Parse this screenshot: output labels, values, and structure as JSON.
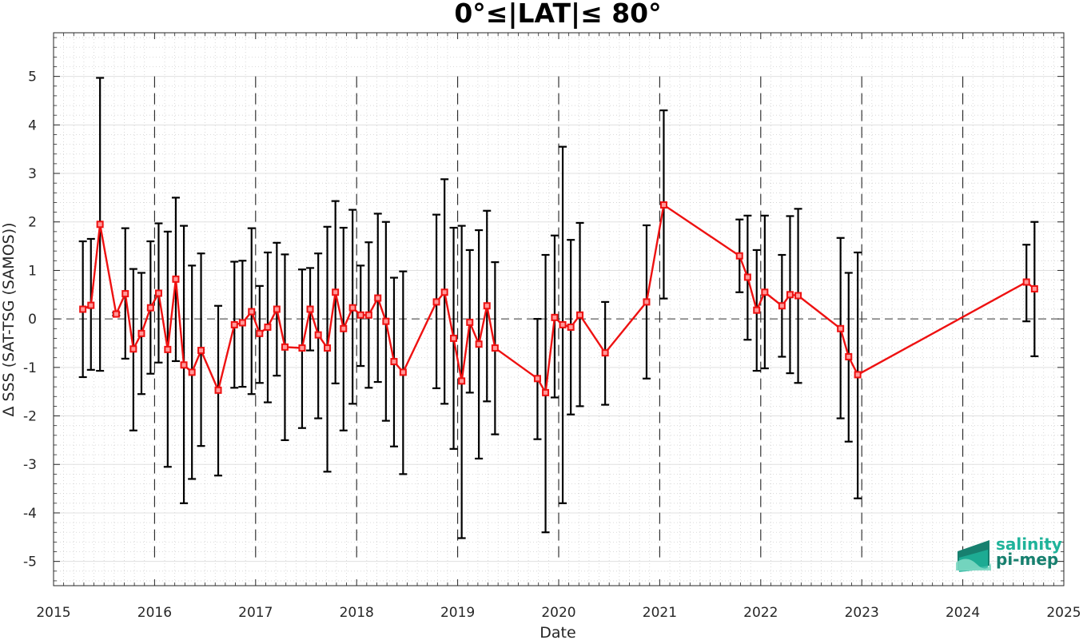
{
  "chart_data": {
    "type": "line",
    "title": "0°≤|LAT|≤ 80°",
    "xlabel": "Date",
    "ylabel": "Δ SSS (SAT-TSG (SAMOS))",
    "xlim": [
      2015,
      2025
    ],
    "ylim": [
      -5.5,
      5.9
    ],
    "x_ticks": [
      "2015",
      "2016",
      "2017",
      "2018",
      "2019",
      "2020",
      "2021",
      "2022",
      "2023",
      "2024",
      "2025"
    ],
    "y_ticks": [
      "5",
      "4",
      "3",
      "2",
      "1",
      "0",
      "-1",
      "-2",
      "-3",
      "-4",
      "-5"
    ],
    "grid": true,
    "reference_line_y": 0,
    "year_boundaries": [
      2016,
      2017,
      2018,
      2019,
      2020,
      2021,
      2022,
      2023,
      2024
    ],
    "series": [
      {
        "color": "#ee1111",
        "marker": "square",
        "x": [
          2015.29,
          2015.37,
          2015.46,
          2015.62,
          2015.71,
          2015.79,
          2015.87,
          2015.96,
          2016.04,
          2016.13,
          2016.21,
          2016.29,
          2016.37,
          2016.46,
          2016.63,
          2016.79,
          2016.87,
          2016.96,
          2017.04,
          2017.12,
          2017.21,
          2017.29,
          2017.46,
          2017.54,
          2017.62,
          2017.71,
          2017.79,
          2017.87,
          2017.96,
          2018.04,
          2018.12,
          2018.21,
          2018.29,
          2018.37,
          2018.46,
          2018.79,
          2018.87,
          2018.96,
          2019.04,
          2019.12,
          2019.21,
          2019.29,
          2019.37,
          2019.79,
          2019.87,
          2019.96,
          2020.04,
          2020.12,
          2020.21,
          2020.46,
          2020.87,
          2021.04,
          2021.79,
          2021.87,
          2021.96,
          2022.04,
          2022.21,
          2022.29,
          2022.37,
          2022.79,
          2022.87,
          2022.96,
          2024.63,
          2024.71
        ],
        "y": [
          0.2,
          0.28,
          1.95,
          0.1,
          0.52,
          -0.62,
          -0.3,
          0.23,
          0.53,
          -0.63,
          0.82,
          -0.95,
          -1.1,
          -0.65,
          -1.47,
          -0.12,
          -0.08,
          0.15,
          -0.3,
          -0.17,
          0.2,
          -0.58,
          -0.6,
          0.2,
          -0.33,
          -0.6,
          0.55,
          -0.2,
          0.23,
          0.08,
          0.08,
          0.43,
          -0.05,
          -0.88,
          -1.1,
          0.35,
          0.55,
          -0.4,
          -1.28,
          -0.07,
          -0.52,
          0.27,
          -0.6,
          -1.23,
          -1.52,
          0.03,
          -0.12,
          -0.17,
          0.08,
          -0.7,
          0.35,
          2.35,
          1.3,
          0.86,
          0.18,
          0.55,
          0.27,
          0.5,
          0.48,
          -0.2,
          -0.78,
          -1.15,
          0.76,
          0.62
        ],
        "err_low": [
          -1.2,
          -1.05,
          -1.07,
          0.07,
          -0.82,
          -2.3,
          -1.55,
          -1.13,
          -0.9,
          -3.05,
          -0.87,
          -3.8,
          -3.3,
          -2.62,
          -3.23,
          -1.42,
          -1.4,
          -1.55,
          -1.32,
          -1.72,
          -1.17,
          -2.5,
          -2.25,
          -0.65,
          -2.05,
          -3.15,
          -1.33,
          -2.3,
          -1.75,
          -0.97,
          -1.42,
          -1.3,
          -2.1,
          -2.63,
          -3.2,
          -1.43,
          -1.75,
          -2.68,
          -4.52,
          -1.52,
          -2.88,
          -1.7,
          -2.38,
          -2.48,
          -4.4,
          -1.62,
          -3.8,
          -1.97,
          -1.8,
          -1.77,
          -1.23,
          0.42,
          0.55,
          -0.43,
          -1.07,
          -1.02,
          -0.78,
          -1.12,
          -1.32,
          -2.05,
          -2.53,
          -3.7,
          -0.05,
          -0.77
        ],
        "err_high": [
          1.6,
          1.65,
          4.97,
          0.13,
          1.87,
          1.03,
          0.95,
          1.6,
          1.97,
          1.8,
          2.5,
          1.92,
          1.1,
          1.35,
          0.27,
          1.18,
          1.2,
          1.87,
          0.68,
          1.37,
          1.57,
          1.33,
          1.02,
          1.05,
          1.35,
          1.9,
          2.43,
          1.88,
          2.25,
          1.1,
          1.58,
          2.17,
          2.0,
          0.85,
          0.98,
          2.15,
          2.88,
          1.88,
          1.92,
          1.42,
          1.83,
          2.23,
          1.17,
          0.0,
          1.32,
          1.72,
          3.55,
          1.63,
          1.98,
          0.35,
          1.93,
          4.3,
          2.05,
          2.13,
          1.42,
          2.13,
          1.32,
          2.12,
          2.27,
          1.67,
          0.95,
          1.37,
          1.53,
          2.0
        ]
      }
    ]
  },
  "logo": {
    "line1": "salinity",
    "line2": "pi-mep",
    "colors": {
      "teal": "#1fb39a",
      "dark": "#17806f",
      "light": "#7dd8c3"
    }
  }
}
